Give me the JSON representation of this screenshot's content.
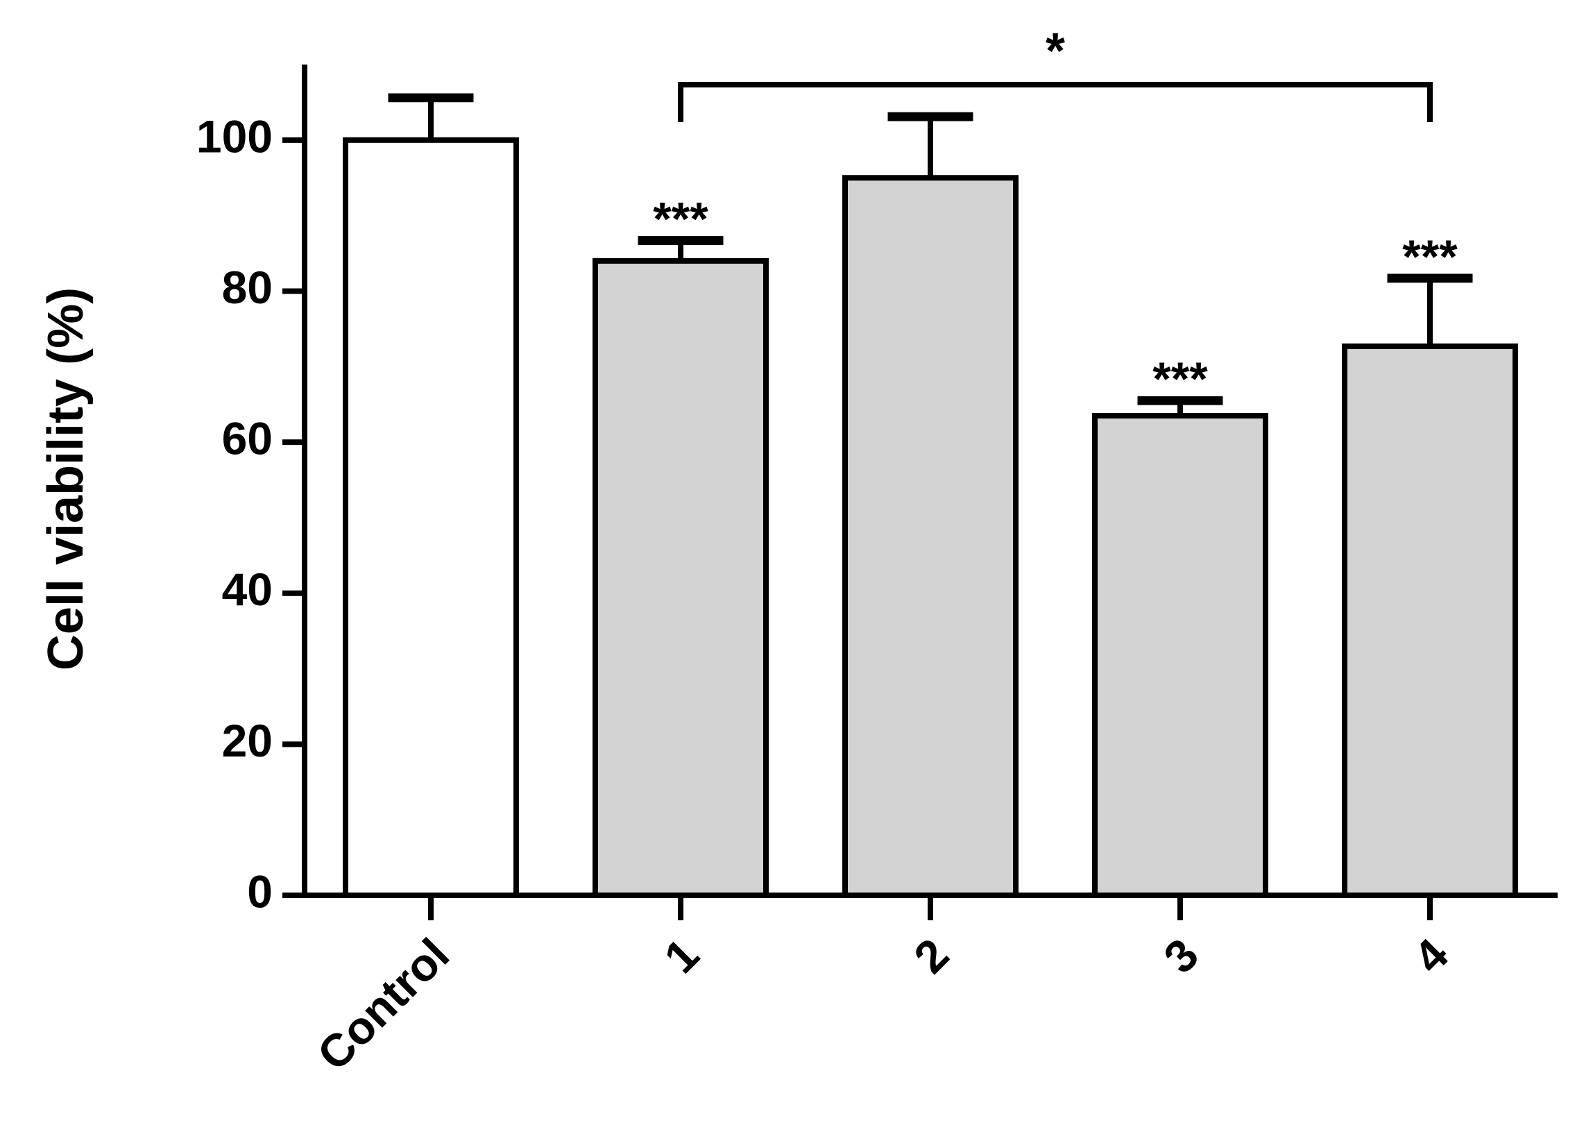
{
  "chart_data": {
    "type": "bar",
    "y_label": "Cell viability (%)",
    "categories": [
      "Control",
      "1",
      "2",
      "3",
      "4"
    ],
    "values": [
      100,
      84,
      95,
      63.5,
      72.7
    ],
    "errors": [
      5.6,
      2.7,
      8.1,
      2,
      9
    ],
    "colors": [
      "#ffffff",
      "#d3d3d3",
      "#d3d3d3",
      "#d3d3d3",
      "#d3d3d3"
    ],
    "value_annotations": [
      null,
      "***",
      null,
      "***",
      "***"
    ],
    "bracket_label": "*",
    "ylim": [
      0,
      110
    ],
    "yticks": [
      0,
      20,
      40,
      60,
      80,
      100
    ]
  }
}
